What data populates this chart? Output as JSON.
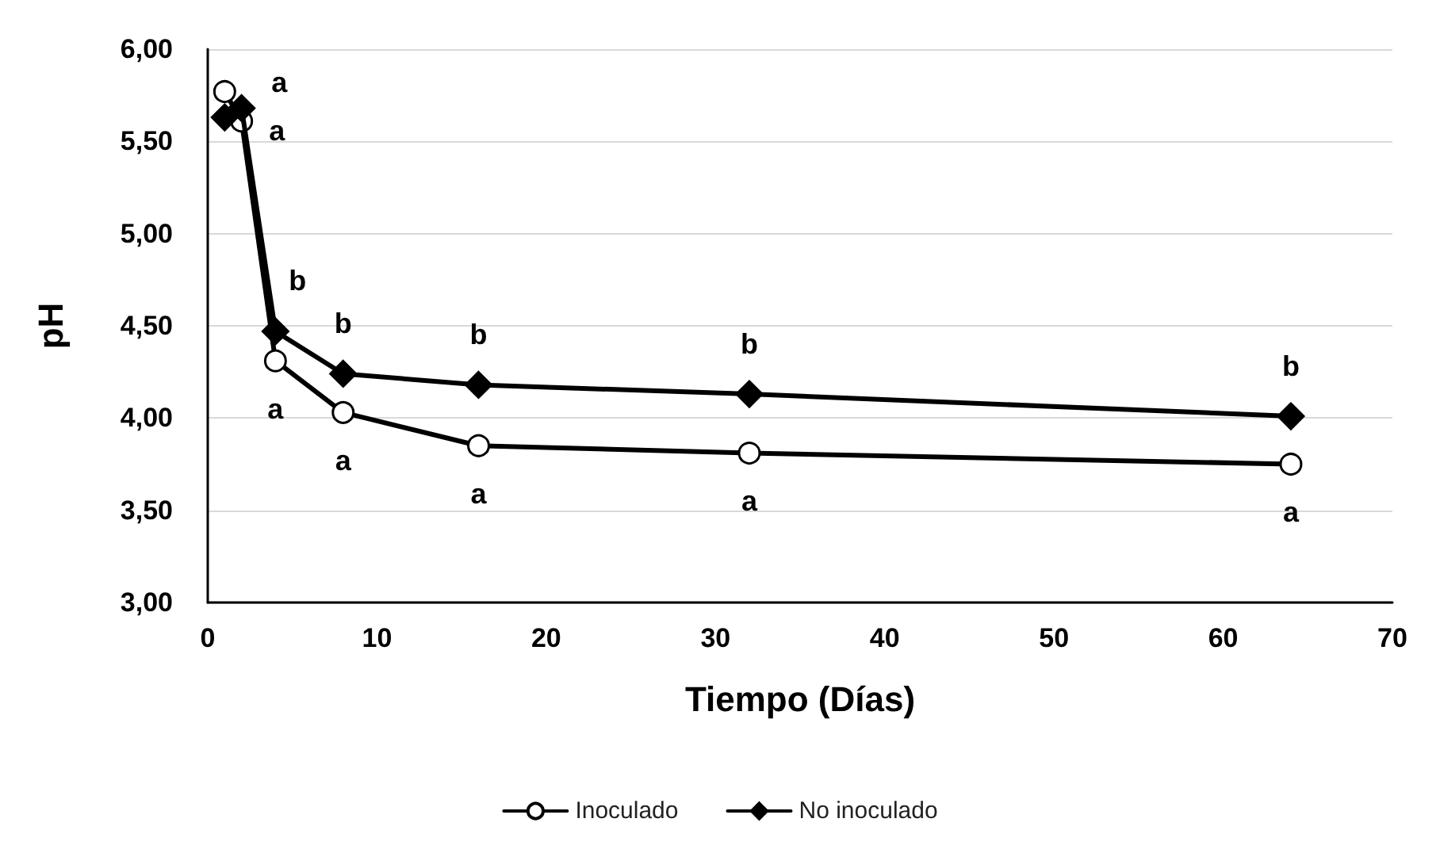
{
  "chart_data": {
    "type": "line",
    "xlabel": "Tiempo (Días)",
    "ylabel": "pH",
    "x": [
      1,
      2,
      4,
      8,
      16,
      32,
      64
    ],
    "series": [
      {
        "name": "Inoculado",
        "color": "#000000",
        "marker": "circle",
        "values": [
          5.77,
          5.61,
          4.31,
          4.03,
          3.85,
          3.81,
          3.75
        ],
        "value_labels": [
          null,
          "a",
          "a",
          "a",
          "a",
          "a",
          "a"
        ]
      },
      {
        "name": "No inoculado",
        "color": "#000000",
        "marker": "diamond",
        "values": [
          5.63,
          5.68,
          4.47,
          4.24,
          4.18,
          4.13,
          4.01
        ],
        "value_labels": [
          null,
          "a",
          "b",
          "b",
          "b",
          "b",
          "b"
        ]
      }
    ],
    "xlim": [
      0,
      70
    ],
    "xticks": [
      0,
      10,
      20,
      30,
      40,
      50,
      60,
      70
    ],
    "ylim": [
      3,
      6
    ],
    "yticks": [
      {
        "value": 3,
        "label": "3,00"
      },
      {
        "value": 3.5,
        "label": "3,50"
      },
      {
        "value": 4,
        "label": "4,00"
      },
      {
        "value": 4.5,
        "label": "4,50"
      },
      {
        "value": 5,
        "label": "5,00"
      },
      {
        "value": 5.5,
        "label": "5,50"
      },
      {
        "value": 6,
        "label": "6,00"
      }
    ],
    "grid": "y",
    "legend": "bottom",
    "line_style": "solid"
  }
}
